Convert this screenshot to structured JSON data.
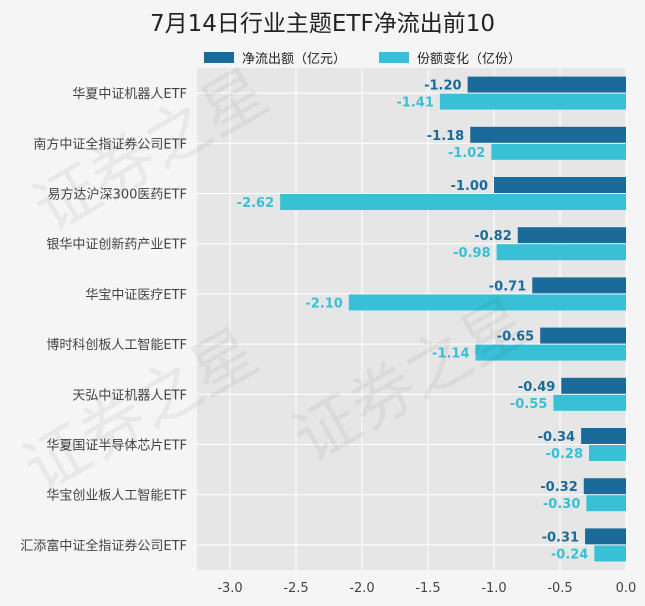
{
  "chart_data": {
    "type": "bar",
    "orientation": "horizontal",
    "title": "7月14日行业主题ETF净流出前10",
    "categories": [
      "华夏中证机器人ETF",
      "南方中证全指证券公司ETF",
      "易方达沪深300医药ETF",
      "银华中证创新药产业ETF",
      "华宝中证医疗ETF",
      "博时科创板人工智能ETF",
      "天弘中证机器人ETF",
      "华夏国证半导体芯片ETF",
      "华宝创业板人工智能ETF",
      "汇添富中证全指证券公司ETF"
    ],
    "series": [
      {
        "name": "净流出额（亿元）",
        "color": "#1a6b9a",
        "labels": [
          "-1.20",
          "-1.18",
          "-1.00",
          "-0.82",
          "-0.71",
          "-0.65",
          "-0.49",
          "-0.34",
          "-0.32",
          "-0.31"
        ],
        "values": [
          -1.2,
          -1.18,
          -1.0,
          -0.82,
          -0.71,
          -0.65,
          -0.49,
          -0.34,
          -0.32,
          -0.31
        ]
      },
      {
        "name": "份额变化（亿份）",
        "color": "#37c0d6",
        "labels": [
          "-1.41",
          "-1.02",
          "-2.62",
          "-0.98",
          "-2.10",
          "-1.14",
          "-0.55",
          "-0.28",
          "-0.30",
          "-0.24"
        ],
        "values": [
          -1.41,
          -1.02,
          -2.62,
          -0.98,
          -2.1,
          -1.14,
          -0.55,
          -0.28,
          -0.3,
          -0.24
        ]
      }
    ],
    "x_ticks": [
      {
        "value": -3.0,
        "label": "-3.0"
      },
      {
        "value": -2.5,
        "label": "-2.5"
      },
      {
        "value": -2.0,
        "label": "-2.0"
      },
      {
        "value": -1.5,
        "label": "-1.5"
      },
      {
        "value": -1.0,
        "label": "-1.0"
      },
      {
        "value": -0.5,
        "label": "-0.5"
      },
      {
        "value": 0.0,
        "label": "0.0"
      }
    ],
    "xlim": [
      -3.25,
      0
    ],
    "grid": true,
    "legend_position": "top"
  },
  "watermark_text": "证券之星"
}
